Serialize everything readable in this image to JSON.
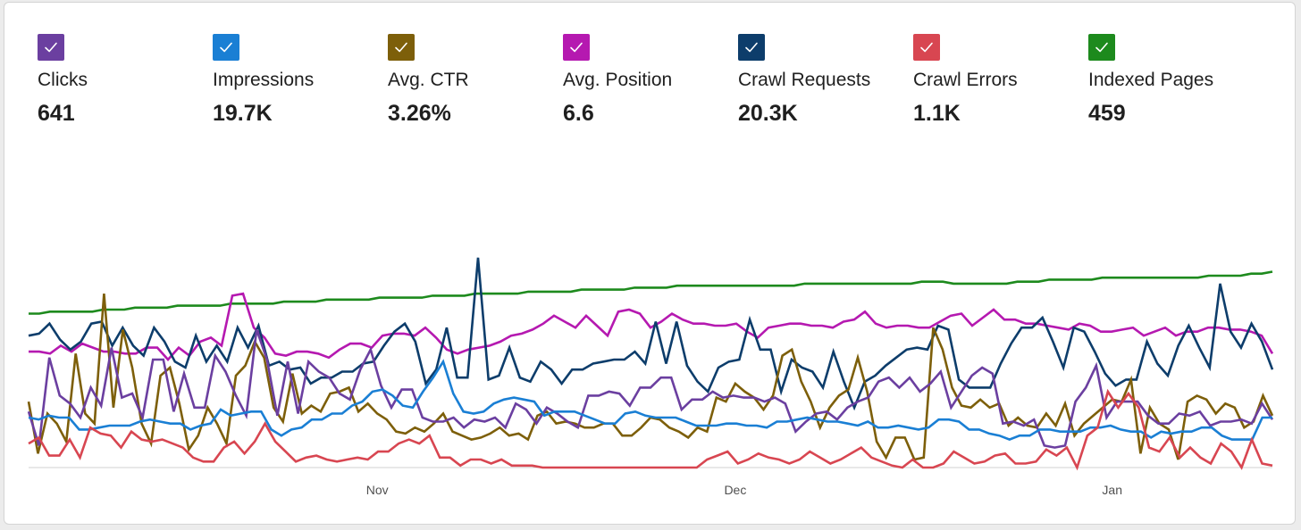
{
  "metrics": [
    {
      "label": "Clicks",
      "value": "641",
      "color": "#6b3fa0",
      "checked": true,
      "icon": "checkmark-icon"
    },
    {
      "label": "Impressions",
      "value": "19.7K",
      "color": "#1a7fd4",
      "checked": true,
      "icon": "checkmark-icon"
    },
    {
      "label": "Avg. CTR",
      "value": "3.26%",
      "color": "#7d5f0a",
      "checked": true,
      "icon": "checkmark-icon"
    },
    {
      "label": "Avg. Position",
      "value": "6.6",
      "color": "#b519b0",
      "checked": true,
      "icon": "checkmark-icon"
    },
    {
      "label": "Crawl Requests",
      "value": "20.3K",
      "color": "#0d3d6b",
      "checked": true,
      "icon": "checkmark-icon"
    },
    {
      "label": "Crawl Errors",
      "value": "1.1K",
      "color": "#d84651",
      "checked": true,
      "icon": "checkmark-icon"
    },
    {
      "label": "Indexed Pages",
      "value": "459",
      "color": "#1d8a1d",
      "checked": true,
      "icon": "checkmark-icon"
    }
  ],
  "chart_data": {
    "type": "line",
    "title": "",
    "xlabel": "",
    "ylabel": "",
    "grid": false,
    "legend": "top",
    "x_ticks": [
      {
        "label": "Nov",
        "index": 37
      },
      {
        "label": "Dec",
        "index": 75
      },
      {
        "label": "Jan",
        "index": 115
      }
    ],
    "ylim": [
      0,
      100
    ],
    "series": [
      {
        "name": "Indexed Pages",
        "color": "#1d8a1d",
        "values": [
          77,
          77,
          78,
          78,
          78,
          78,
          78,
          79,
          79,
          79,
          80,
          80,
          80,
          80,
          81,
          81,
          81,
          81,
          81,
          82,
          82,
          82,
          82,
          82,
          83,
          83,
          83,
          83,
          84,
          84,
          84,
          84,
          84,
          85,
          85,
          85,
          85,
          85,
          86,
          86,
          86,
          86,
          87,
          87,
          87,
          87,
          87,
          88,
          88,
          88,
          88,
          88,
          89,
          89,
          89,
          89,
          89,
          90,
          90,
          90,
          90,
          91,
          91,
          91,
          91,
          91,
          91,
          91,
          91,
          91,
          91,
          91,
          91,
          92,
          92,
          92,
          92,
          92,
          92,
          92,
          92,
          92,
          92,
          92,
          93,
          93,
          93,
          92,
          92,
          92,
          92,
          92,
          92,
          93,
          93,
          93,
          94,
          94,
          94,
          94,
          94,
          95,
          95,
          95,
          95,
          95,
          95,
          95,
          95,
          95,
          95,
          96,
          96,
          96,
          96,
          97,
          97,
          98
        ]
      },
      {
        "name": "Avg. Position",
        "color": "#b519b0",
        "values": [
          58,
          58,
          57,
          61,
          58,
          62,
          60,
          58,
          58,
          57,
          57,
          60,
          60,
          54,
          60,
          56,
          63,
          65,
          61,
          86,
          87,
          70,
          65,
          57,
          56,
          58,
          58,
          57,
          55,
          59,
          62,
          62,
          60,
          66,
          67,
          67,
          66,
          70,
          65,
          59,
          57,
          59,
          60,
          61,
          63,
          66,
          67,
          69,
          72,
          76,
          73,
          70,
          76,
          71,
          66,
          78,
          79,
          77,
          70,
          73,
          77,
          74,
          72,
          72,
          71,
          71,
          72,
          68,
          65,
          70,
          71,
          72,
          72,
          71,
          71,
          70,
          73,
          74,
          78,
          72,
          70,
          71,
          71,
          70,
          70,
          73,
          76,
          77,
          71,
          75,
          79,
          74,
          74,
          72,
          72,
          71,
          70,
          69,
          72,
          71,
          68,
          68,
          69,
          70,
          66,
          68,
          70,
          66,
          68,
          68,
          70,
          70,
          69,
          69,
          68,
          66,
          57
        ]
      },
      {
        "name": "Crawl Requests",
        "color": "#0d3d6b",
        "values": [
          66,
          67,
          72,
          64,
          59,
          63,
          72,
          73,
          61,
          70,
          61,
          56,
          70,
          63,
          53,
          50,
          66,
          53,
          61,
          53,
          70,
          60,
          71,
          51,
          53,
          49,
          50,
          42,
          45,
          45,
          48,
          48,
          52,
          53,
          61,
          68,
          72,
          63,
          42,
          49,
          70,
          45,
          45,
          105,
          44,
          46,
          60,
          45,
          43,
          53,
          49,
          42,
          49,
          49,
          52,
          53,
          54,
          54,
          58,
          52,
          73,
          52,
          73,
          51,
          43,
          38,
          50,
          53,
          54,
          74,
          59,
          59,
          38,
          54,
          50,
          48,
          40,
          58,
          43,
          30,
          43,
          46,
          51,
          55,
          59,
          60,
          59,
          71,
          69,
          44,
          40,
          40,
          40,
          52,
          62,
          70,
          70,
          75,
          63,
          50,
          70,
          68,
          58,
          47,
          41,
          44,
          44,
          63,
          52,
          46,
          61,
          71,
          60,
          50,
          92,
          68,
          60,
          72,
          63,
          49
        ]
      },
      {
        "name": "Avg. CTR",
        "color": "#7d5f0a",
        "values": [
          33,
          7,
          27,
          22,
          13,
          57,
          27,
          22,
          87,
          30,
          69,
          50,
          22,
          12,
          46,
          50,
          32,
          9,
          16,
          30,
          22,
          12,
          46,
          51,
          63,
          55,
          30,
          23,
          47,
          27,
          31,
          28,
          37,
          38,
          40,
          28,
          32,
          27,
          24,
          18,
          17,
          20,
          18,
          22,
          27,
          18,
          16,
          14,
          15,
          17,
          20,
          16,
          17,
          14,
          26,
          28,
          22,
          23,
          22,
          20,
          20,
          22,
          22,
          16,
          16,
          20,
          25,
          24,
          20,
          18,
          15,
          20,
          18,
          35,
          33,
          42,
          38,
          35,
          29,
          36,
          56,
          59,
          43,
          33,
          20,
          30,
          36,
          39,
          55,
          38,
          13,
          5,
          15,
          15,
          4,
          5,
          70,
          59,
          40,
          31,
          30,
          34,
          30,
          32,
          21,
          25,
          21,
          20,
          27,
          21,
          32,
          16,
          22,
          26,
          30,
          34,
          33,
          44,
          7,
          30,
          22,
          19,
          4,
          33,
          36,
          34,
          27,
          32,
          30,
          20,
          23,
          36,
          26
        ]
      },
      {
        "name": "Clicks",
        "color": "#6b3fa0",
        "values": [
          28,
          11,
          55,
          36,
          32,
          25,
          40,
          31,
          60,
          35,
          37,
          25,
          54,
          54,
          28,
          47,
          30,
          30,
          56,
          48,
          36,
          26,
          69,
          54,
          26,
          53,
          27,
          53,
          48,
          45,
          37,
          34,
          49,
          59,
          41,
          30,
          39,
          39,
          25,
          23,
          23,
          25,
          20,
          24,
          23,
          25,
          20,
          32,
          29,
          22,
          30,
          27,
          23,
          20,
          36,
          36,
          38,
          37,
          31,
          40,
          40,
          45,
          45,
          29,
          34,
          34,
          38,
          35,
          36,
          35,
          35,
          33,
          35,
          32,
          18,
          23,
          27,
          28,
          24,
          30,
          33,
          35,
          43,
          45,
          40,
          45,
          38,
          42,
          48,
          30,
          38,
          46,
          50,
          47,
          22,
          23,
          21,
          24,
          11,
          10,
          11,
          33,
          40,
          51,
          25,
          33,
          33,
          33,
          26,
          22,
          22,
          27,
          26,
          28,
          21,
          23,
          23,
          24,
          22,
          32,
          24
        ]
      },
      {
        "name": "Impressions",
        "color": "#1a7fd4",
        "values": [
          25,
          24,
          26,
          25,
          25,
          19,
          19,
          20,
          21,
          21,
          21,
          23,
          24,
          23,
          22,
          22,
          19,
          21,
          22,
          29,
          26,
          27,
          28,
          28,
          19,
          16,
          19,
          20,
          24,
          24,
          27,
          27,
          31,
          33,
          38,
          39,
          36,
          31,
          30,
          38,
          45,
          53,
          37,
          28,
          27,
          28,
          32,
          34,
          35,
          34,
          33,
          26,
          28,
          28,
          28,
          26,
          24,
          22,
          22,
          27,
          28,
          26,
          25,
          25,
          25,
          23,
          21,
          21,
          21,
          22,
          22,
          21,
          21,
          20,
          23,
          23,
          24,
          25,
          24,
          23,
          23,
          22,
          21,
          23,
          20,
          20,
          21,
          20,
          19,
          20,
          24,
          24,
          23,
          19,
          19,
          17,
          16,
          14,
          16,
          16,
          19,
          19,
          18,
          18,
          18,
          20,
          20,
          21,
          19,
          18,
          18,
          15,
          18,
          17,
          18,
          18,
          20,
          20,
          16,
          14,
          14,
          14,
          25,
          25
        ]
      },
      {
        "name": "Crawl Errors",
        "color": "#d84651",
        "values": [
          12,
          15,
          6,
          6,
          14,
          5,
          20,
          17,
          16,
          10,
          18,
          14,
          13,
          14,
          12,
          10,
          5,
          3,
          3,
          10,
          13,
          7,
          13,
          22,
          13,
          8,
          3,
          5,
          6,
          4,
          3,
          4,
          5,
          4,
          8,
          8,
          12,
          14,
          12,
          16,
          5,
          5,
          1,
          4,
          4,
          2,
          4,
          1,
          1,
          1,
          0,
          0,
          0,
          0,
          0,
          0,
          0,
          0,
          0,
          0,
          0,
          0,
          0,
          0,
          0,
          0,
          4,
          6,
          8,
          2,
          4,
          7,
          5,
          4,
          2,
          4,
          8,
          5,
          2,
          4,
          7,
          10,
          5,
          3,
          1,
          0,
          4,
          0,
          0,
          2,
          8,
          5,
          2,
          3,
          6,
          7,
          2,
          2,
          3,
          9,
          6,
          10,
          0,
          16,
          20,
          38,
          30,
          37,
          30,
          10,
          8,
          15,
          5,
          10,
          5,
          2,
          12,
          8,
          0,
          14,
          2,
          1
        ]
      }
    ]
  }
}
